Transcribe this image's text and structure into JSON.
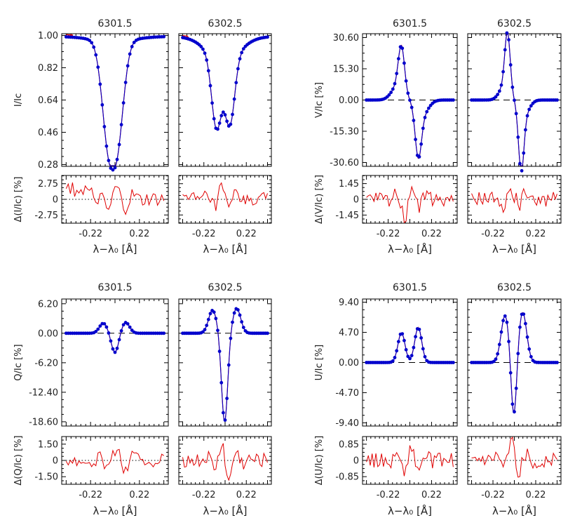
{
  "chart_data": {
    "type": "line",
    "colors": {
      "observed": "#0000cc",
      "fit": "#e00000",
      "zero_line": "#000000",
      "axis": "#000000"
    },
    "x_tick_labels": [
      "-0.22",
      "0.22"
    ],
    "x_label": "λ−λ₀ [Å]",
    "lines": [
      "6301.5",
      "6302.5"
    ],
    "quadrants": [
      {
        "id": "I",
        "ylabel": "I/Ic",
        "ylim": [
          0.27,
          1.01
        ],
        "yticks": [
          0.28,
          0.46,
          0.64,
          0.82,
          1.0
        ],
        "yticklabels": [
          "0.28",
          "0.46",
          "0.64",
          "0.82",
          "1.00"
        ],
        "zero_line": false,
        "residual": {
          "ylabel": "Δ(I/Ic) [%]",
          "ylim": [
            -4.2,
            4.2
          ],
          "yticks": [
            -2.75,
            0,
            2.75
          ],
          "yticklabels": [
            "-2.75",
            "0",
            "2.75"
          ]
        }
      },
      {
        "id": "V",
        "ylabel": "V/Ic [%]",
        "ylim": [
          -32.5,
          32.5
        ],
        "yticks": [
          -30.6,
          -15.3,
          0,
          15.3,
          30.6
        ],
        "yticklabels": [
          "-30.60",
          "-15.30",
          "0.00",
          "15.30",
          "30.60"
        ],
        "zero_line": true,
        "residual": {
          "ylabel": "Δ(V/Ic) [%]",
          "ylim": [
            -2.2,
            2.2
          ],
          "yticks": [
            -1.45,
            0,
            1.45
          ],
          "yticklabels": [
            "-1.45",
            "0",
            "1.45"
          ]
        }
      },
      {
        "id": "Q",
        "ylabel": "Q/Ic [%]",
        "ylim": [
          -19.5,
          7.2
        ],
        "yticks": [
          -18.6,
          -12.4,
          -6.2,
          0,
          6.2
        ],
        "yticklabels": [
          "-18.60",
          "-12.40",
          "-6.20",
          "0.00",
          "6.20"
        ],
        "zero_line": true,
        "residual": {
          "ylabel": "Δ(Q/Ic) [%]",
          "ylim": [
            -2.2,
            2.2
          ],
          "yticks": [
            -1.5,
            0,
            1.5
          ],
          "yticklabels": [
            "-1.50",
            "0",
            "1.50"
          ]
        }
      },
      {
        "id": "U",
        "ylabel": "U/Ic [%]",
        "ylim": [
          -9.9,
          9.9
        ],
        "yticks": [
          -9.4,
          -4.7,
          0,
          4.7,
          9.4
        ],
        "yticklabels": [
          "-9.40",
          "-4.70",
          "0.00",
          "4.70",
          "9.40"
        ],
        "zero_line": true,
        "residual": {
          "ylabel": "Δ(U/Ic) [%]",
          "ylim": [
            -1.25,
            1.25
          ],
          "yticks": [
            -0.85,
            0,
            0.85
          ],
          "yticklabels": [
            "-0.85",
            "0",
            "0.85"
          ]
        }
      }
    ]
  }
}
